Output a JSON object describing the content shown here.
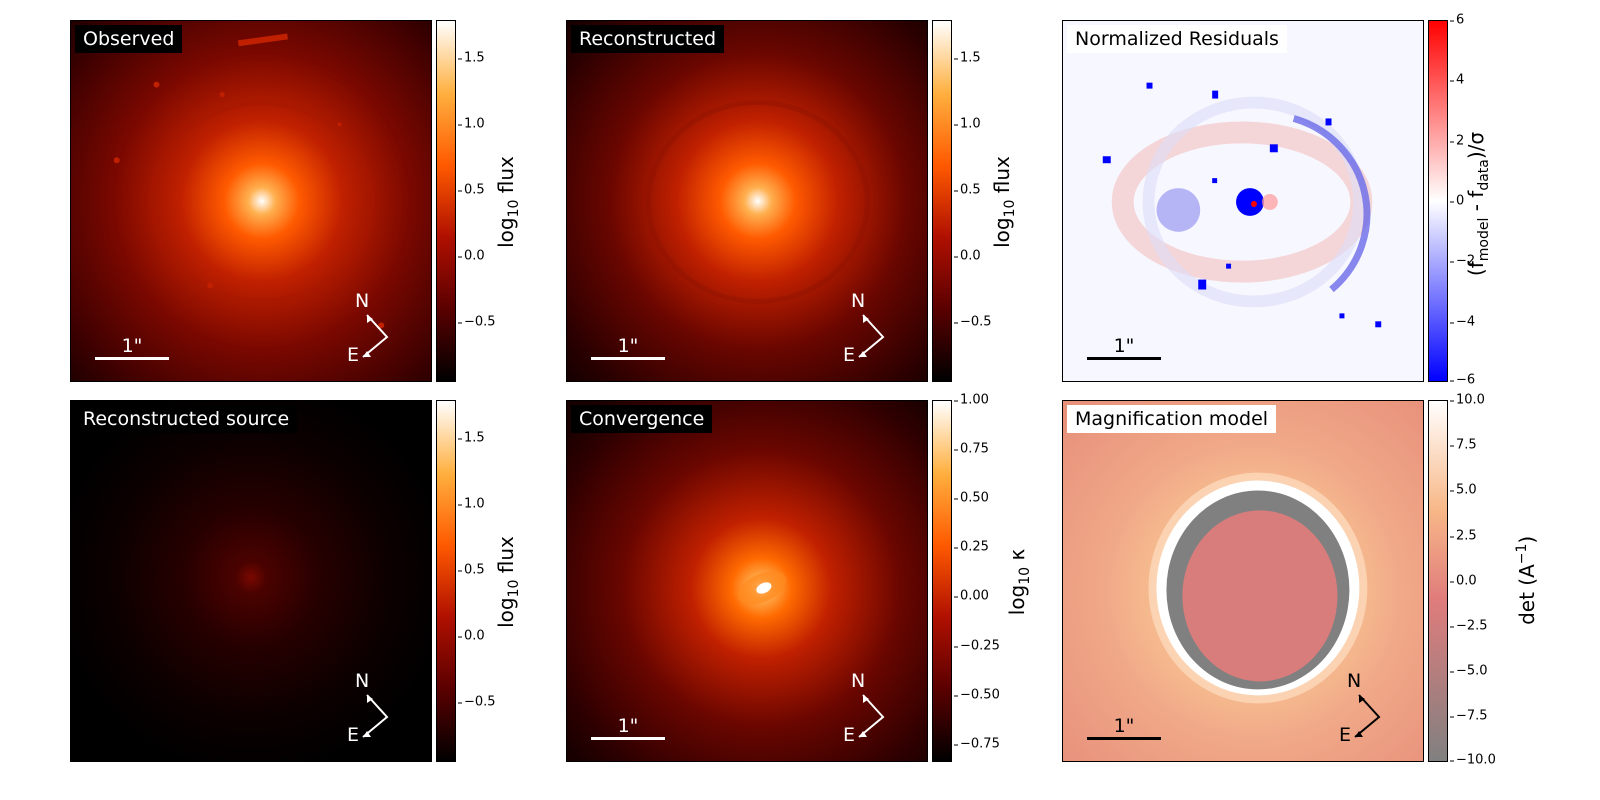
{
  "panels": {
    "observed": {
      "title": "Observed",
      "scale_label": "1\"",
      "compass": {
        "north": "N",
        "east": "E"
      },
      "colorbar": {
        "ticks": [
          "1.5",
          "1.0",
          "0.5",
          "0.0",
          "−0.5"
        ],
        "label_main": "log",
        "label_sub": "10",
        "label_rest": " flux"
      }
    },
    "reconstructed": {
      "title": "Reconstructed",
      "scale_label": "1\"",
      "compass": {
        "north": "N",
        "east": "E"
      },
      "colorbar": {
        "ticks": [
          "1.5",
          "1.0",
          "0.5",
          "0.0",
          "−0.5"
        ],
        "label_main": "log",
        "label_sub": "10",
        "label_rest": " flux"
      }
    },
    "residuals": {
      "title": "Normalized Residuals",
      "scale_label": "1\"",
      "colorbar": {
        "ticks": [
          "6",
          "4",
          "2",
          "0",
          "−2",
          "−4",
          "−6"
        ],
        "label_pre": "(f",
        "label_sub1": "model",
        "label_mid": " - f",
        "label_sub2": "data",
        "label_post": ")/σ"
      }
    },
    "source": {
      "title": "Reconstructed source",
      "compass": {
        "north": "N",
        "east": "E"
      },
      "colorbar": {
        "ticks": [
          "1.5",
          "1.0",
          "0.5",
          "0.0",
          "−0.5"
        ],
        "label_main": "log",
        "label_sub": "10",
        "label_rest": " flux"
      }
    },
    "convergence": {
      "title": "Convergence",
      "scale_label": "1\"",
      "compass": {
        "north": "N",
        "east": "E"
      },
      "colorbar": {
        "ticks": [
          "1.00",
          "0.75",
          "0.50",
          "0.25",
          "0.00",
          "−0.25",
          "−0.50",
          "−0.75"
        ],
        "label_main": "log",
        "label_sub": "10",
        "label_rest": " κ"
      }
    },
    "magnification": {
      "title": "Magnification model",
      "scale_label": "1\"",
      "compass": {
        "north": "N",
        "east": "E"
      },
      "colorbar": {
        "ticks": [
          "10.0",
          "7.5",
          "5.0",
          "2.5",
          "0.0",
          "−2.5",
          "−5.0",
          "−7.5",
          "−10.0"
        ],
        "label_pre": "det (A",
        "label_sup": "−1",
        "label_post": ")"
      }
    }
  },
  "colors": {
    "flux_map": [
      "#000000",
      "#5a0000",
      "#b01000",
      "#ff5a00",
      "#ffa040",
      "#ffffff"
    ],
    "residual_map": [
      "#0000ff",
      "#ffffff",
      "#ff0000"
    ],
    "magnification_map": [
      "#808080",
      "#e07c7c",
      "#f8b888",
      "#ffffff"
    ]
  }
}
